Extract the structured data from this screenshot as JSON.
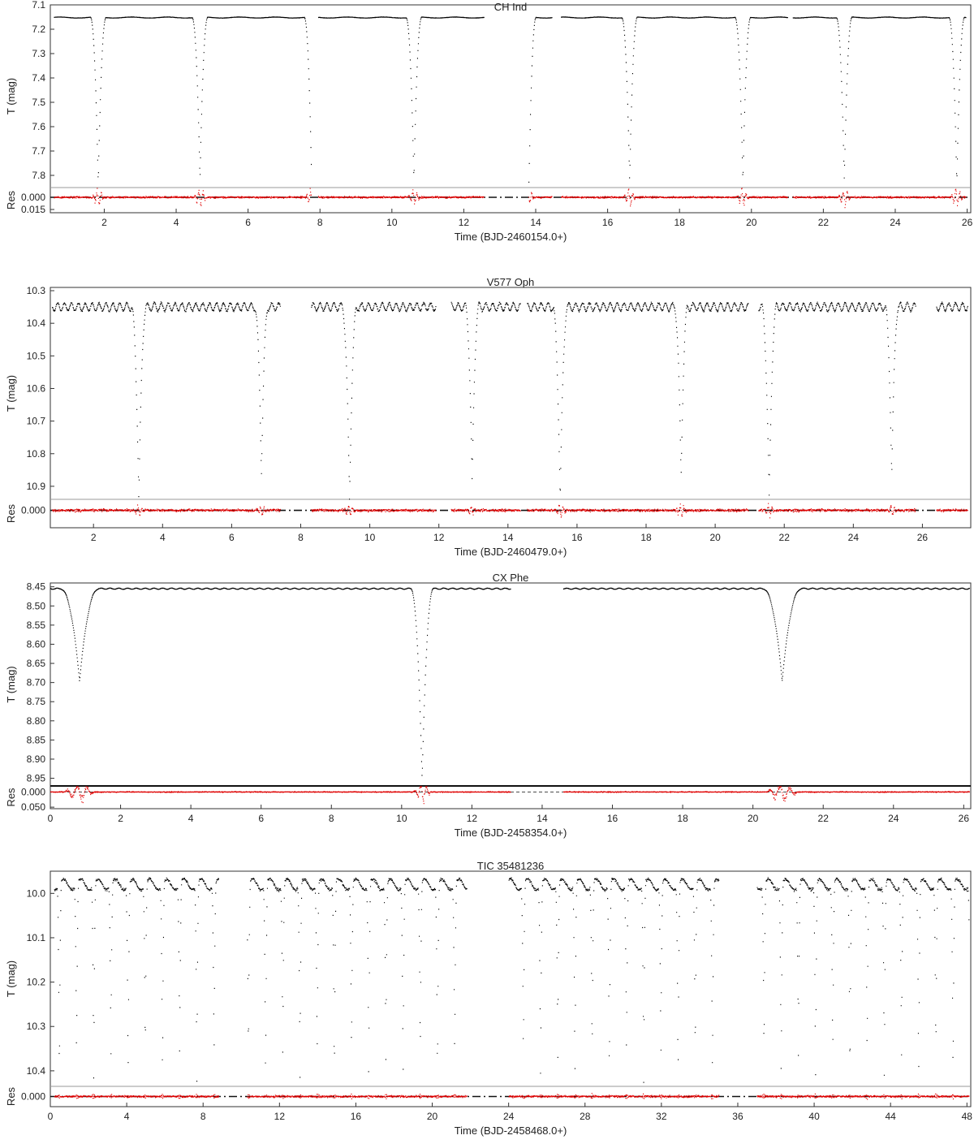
{
  "chart_data": [
    {
      "type": "scatter",
      "title": "CH Ind",
      "xlabel": "Time (BJD-2460154.0+)",
      "ylabel": "T (mag)",
      "res_label": "Res",
      "xlim": [
        0.5,
        26.1
      ],
      "ylim": [
        7.1,
        7.85
      ],
      "y_reversed": true,
      "res_ylim": [
        -0.012,
        0.019
      ],
      "xticks": [
        2,
        4,
        6,
        8,
        10,
        12,
        14,
        16,
        18,
        20,
        22,
        24,
        26
      ],
      "yticks": [
        7.1,
        7.2,
        7.3,
        7.4,
        7.5,
        7.6,
        7.7,
        7.8
      ],
      "res_yticks": [
        0.0,
        0.015
      ],
      "light_curve": {
        "baseline": 7.152,
        "segments": [
          [
            0.6,
            7.75
          ],
          [
            7.95,
            12.55
          ],
          [
            13.8,
            14.45
          ],
          [
            14.7,
            21.0
          ],
          [
            21.15,
            25.95
          ]
        ],
        "eclipses": [
          {
            "t": 1.82,
            "depth": 7.835,
            "width": 0.22
          },
          {
            "t": 4.65,
            "depth": 7.82,
            "width": 0.22
          },
          {
            "t": 7.75,
            "depth": 7.78,
            "width": 0.2
          },
          {
            "t": 10.6,
            "depth": 7.82,
            "width": 0.22
          },
          {
            "t": 13.8,
            "depth": 7.83,
            "width": 0.2
          },
          {
            "t": 16.6,
            "depth": 7.82,
            "width": 0.22
          },
          {
            "t": 19.75,
            "depth": 7.83,
            "width": 0.22
          },
          {
            "t": 22.57,
            "depth": 7.82,
            "width": 0.22
          },
          {
            "t": 25.7,
            "depth": 7.835,
            "width": 0.22
          }
        ],
        "ripple_amplitude": 0.002,
        "ripple_period": 1.0
      },
      "residuals": {
        "scatter": 0.0015,
        "spike": 0.012
      }
    },
    {
      "type": "scatter",
      "title": "V577 Oph",
      "xlabel": "Time (BJD-2460479.0+)",
      "ylabel": "T (mag)",
      "res_label": "Res",
      "xlim": [
        0.75,
        27.4
      ],
      "ylim": [
        10.29,
        10.94
      ],
      "y_reversed": true,
      "res_ylim": [
        -0.035,
        0.055
      ],
      "xticks": [
        2,
        4,
        6,
        8,
        10,
        12,
        14,
        16,
        18,
        20,
        22,
        24,
        26
      ],
      "yticks": [
        10.3,
        10.4,
        10.5,
        10.6,
        10.7,
        10.8,
        10.9
      ],
      "res_yticks": [
        0.0
      ],
      "light_curve": {
        "baseline": 10.35,
        "segments": [
          [
            0.8,
            7.4
          ],
          [
            8.3,
            11.9
          ],
          [
            12.35,
            14.35
          ],
          [
            14.55,
            20.95
          ],
          [
            21.25,
            25.8
          ],
          [
            26.4,
            27.3
          ]
        ],
        "eclipses": [
          {
            "t": 3.3,
            "depth": 10.94,
            "width": 0.22
          },
          {
            "t": 6.85,
            "depth": 10.86,
            "width": 0.2
          },
          {
            "t": 9.4,
            "depth": 10.94,
            "width": 0.22
          },
          {
            "t": 12.95,
            "depth": 10.89,
            "width": 0.2
          },
          {
            "t": 15.5,
            "depth": 10.94,
            "width": 0.22
          },
          {
            "t": 19.0,
            "depth": 10.87,
            "width": 0.2
          },
          {
            "t": 21.55,
            "depth": 10.94,
            "width": 0.22
          },
          {
            "t": 25.1,
            "depth": 10.87,
            "width": 0.2
          }
        ],
        "ripple_amplitude": 0.012,
        "ripple_period": 0.2
      },
      "residuals": {
        "scatter": 0.006,
        "spike": 0.02
      }
    },
    {
      "type": "scatter",
      "title": "CX Phe",
      "xlabel": "Time (BJD-2458354.0+)",
      "ylabel": "T (mag)",
      "res_label": "Res",
      "xlim": [
        0.0,
        26.2
      ],
      "ylim": [
        8.44,
        8.97
      ],
      "y_reversed": true,
      "res_ylim": [
        -0.02,
        0.055
      ],
      "xticks": [
        0,
        2,
        4,
        6,
        8,
        10,
        12,
        14,
        16,
        18,
        20,
        22,
        24,
        26
      ],
      "yticks": [
        8.45,
        8.5,
        8.55,
        8.6,
        8.65,
        8.7,
        8.75,
        8.8,
        8.85,
        8.9,
        8.95
      ],
      "res_yticks": [
        0.0,
        0.05
      ],
      "light_curve": {
        "baseline": 8.455,
        "segments": [
          [
            0.0,
            13.1
          ],
          [
            14.6,
            26.15
          ]
        ],
        "eclipses": [
          {
            "t": 0.82,
            "depth": 8.695,
            "width": 0.55
          },
          {
            "t": 10.57,
            "depth": 8.95,
            "width": 0.32
          },
          {
            "t": 20.82,
            "depth": 8.695,
            "width": 0.55
          }
        ],
        "ripple_amplitude": 0.0015,
        "ripple_period": 0.25
      },
      "residuals": {
        "scatter": 0.002,
        "spike": 0.04
      }
    },
    {
      "type": "scatter",
      "title": "TIC 35481236",
      "xlabel": "Time (BJD-2458468.0+)",
      "ylabel": "T (mag)",
      "res_label": "Res",
      "xlim": [
        0.0,
        48.2
      ],
      "ylim": [
        9.95,
        10.435
      ],
      "y_reversed": true,
      "res_ylim": [
        -0.03,
        0.03
      ],
      "xticks": [
        0,
        4,
        8,
        12,
        16,
        20,
        24,
        28,
        32,
        36,
        40,
        44,
        48
      ],
      "yticks": [
        10.0,
        10.1,
        10.2,
        10.3,
        10.4
      ],
      "res_yticks": [
        0.0
      ],
      "light_curve": {
        "baseline": 9.98,
        "segments": [
          [
            0.2,
            8.8
          ],
          [
            10.3,
            21.8
          ],
          [
            24.0,
            35.0
          ],
          [
            37.0,
            48.1
          ]
        ],
        "eclipse_period": 0.9,
        "eclipse_start": 0.45,
        "primary_depth": 10.43,
        "secondary_depth": 10.375,
        "eclipse_width": 0.12,
        "ripple_amplitude": 0.012,
        "ripple_period": 0.9
      },
      "residuals": {
        "scatter": 0.004,
        "spike": 0.008
      }
    }
  ]
}
